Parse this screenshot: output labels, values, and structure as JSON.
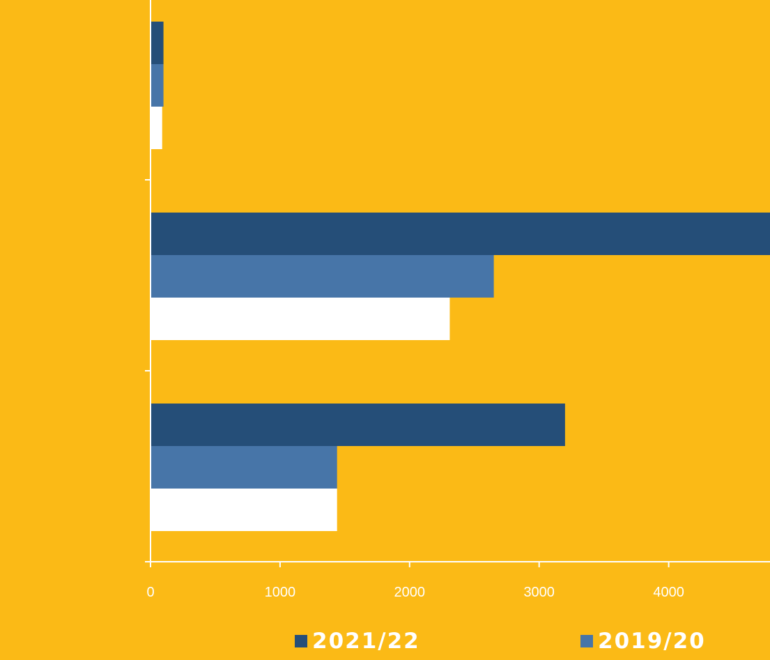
{
  "colors": {
    "background": "#FBBA16",
    "axis": "#FFFFFF"
  },
  "chart_data": {
    "type": "bar",
    "orientation": "horizontal",
    "title": "",
    "xlabel": "",
    "ylabel": "",
    "xlim": [
      0,
      4800
    ],
    "x_ticks": [
      "0",
      "1000",
      "2000",
      "3000",
      "4000"
    ],
    "categories": [
      "",
      "",
      ""
    ],
    "series": [
      {
        "name": "2021/22",
        "color": "#254E78",
        "values": [
          100,
          4800,
          3200
        ]
      },
      {
        "name": "2019/20",
        "color": "#4775A8",
        "values": [
          100,
          2650,
          1440
        ]
      },
      {
        "name": "",
        "color": "#FFFFFF",
        "values": [
          90,
          2310,
          1440
        ]
      }
    ],
    "legend_position": "bottom",
    "grid": false
  },
  "legend": {
    "items": [
      {
        "label": "2021/22",
        "color": "#254E78"
      },
      {
        "label": "2019/20",
        "color": "#4775A8"
      }
    ]
  }
}
